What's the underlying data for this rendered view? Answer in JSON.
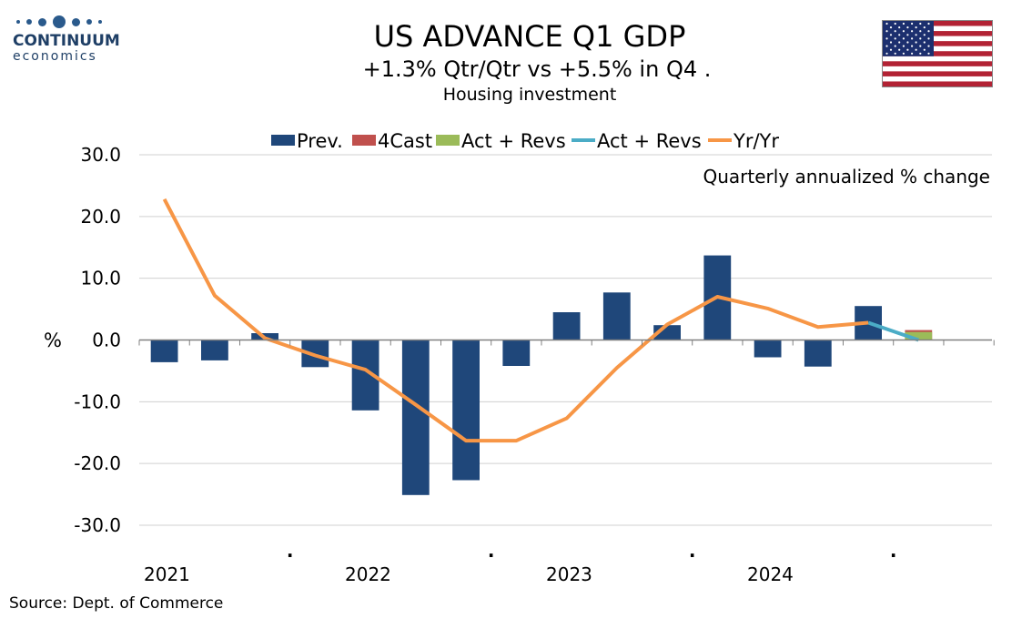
{
  "logo": {
    "name": "CONTINUUM",
    "sub": "economics"
  },
  "header": {
    "title": "US ADVANCE Q1 GDP",
    "subtitle": "+1.3% Qtr/Qtr vs +5.5% in Q4 .",
    "subtitle2": "Housing investment"
  },
  "source": "Source: Dept. of Commerce",
  "colors": {
    "prev": "#1f477a",
    "forecast": "#c0504d",
    "actual_bar": "#9bbb59",
    "actual_line": "#4bacc6",
    "yoy": "#f79646",
    "grid": "#d0d0d0"
  },
  "chart_data": {
    "type": "bar",
    "annotation": "Quarterly annualized % change",
    "ylabel": "%",
    "ylim": [
      -30,
      30
    ],
    "yticks": [
      "30.0",
      "20.0",
      "10.0",
      "0.0",
      "-10.0",
      "-20.0",
      "-30.0"
    ],
    "ytick_values": [
      30,
      20,
      10,
      0,
      -10,
      -20,
      -30
    ],
    "x_labels": [
      {
        "index": 0,
        "label": "2021"
      },
      {
        "index": 2.5,
        "label": "."
      },
      {
        "index": 4,
        "label": "2022"
      },
      {
        "index": 6.5,
        "label": "."
      },
      {
        "index": 8,
        "label": "2023"
      },
      {
        "index": 10.5,
        "label": "."
      },
      {
        "index": 12,
        "label": "2024"
      },
      {
        "index": 14.5,
        "label": "."
      }
    ],
    "categories": [
      "2021Q1",
      "2021Q2",
      "2021Q3",
      "2021Q4",
      "2022Q1",
      "2022Q2",
      "2022Q3",
      "2022Q4",
      "2023Q1",
      "2023Q2",
      "2023Q3",
      "2023Q4",
      "2024Q1",
      "2024Q2",
      "2024Q3",
      "2024Q4",
      "2025Q1"
    ],
    "legend": [
      {
        "name": "Prev.",
        "kind": "bar",
        "color": "#1f477a"
      },
      {
        "name": "4Cast",
        "kind": "bar",
        "color": "#c0504d"
      },
      {
        "name": "Act + Revs",
        "kind": "bar",
        "color": "#9bbb59"
      },
      {
        "name": "Act + Revs",
        "kind": "line",
        "color": "#4bacc6"
      },
      {
        "name": "Yr/Yr",
        "kind": "line",
        "color": "#f79646"
      }
    ],
    "series": [
      {
        "name": "Prev.",
        "kind": "bar",
        "values": [
          -3.6,
          -3.3,
          1.1,
          -4.4,
          -11.4,
          -25.1,
          -22.7,
          -4.2,
          4.5,
          7.7,
          2.4,
          13.7,
          -2.8,
          -4.3,
          5.5,
          null,
          null
        ]
      },
      {
        "name": "4Cast",
        "kind": "bar",
        "values": [
          null,
          null,
          null,
          null,
          null,
          null,
          null,
          null,
          null,
          null,
          null,
          null,
          null,
          null,
          null,
          1.6,
          null
        ]
      },
      {
        "name": "Act + Revs",
        "kind": "bar",
        "values": [
          null,
          null,
          null,
          null,
          null,
          null,
          null,
          null,
          null,
          null,
          null,
          null,
          null,
          null,
          null,
          1.3,
          null
        ]
      },
      {
        "name": "Act + Revs",
        "kind": "line",
        "values": [
          null,
          null,
          null,
          null,
          null,
          null,
          null,
          null,
          null,
          null,
          null,
          null,
          null,
          null,
          2.8,
          0.0,
          null
        ]
      },
      {
        "name": "Yr/Yr",
        "kind": "line",
        "values": [
          22.8,
          7.2,
          0.3,
          -2.5,
          -4.8,
          -10.5,
          -16.3,
          -16.3,
          -12.7,
          -4.5,
          2.5,
          7.0,
          5.1,
          2.1,
          2.8,
          null,
          null
        ]
      }
    ]
  }
}
